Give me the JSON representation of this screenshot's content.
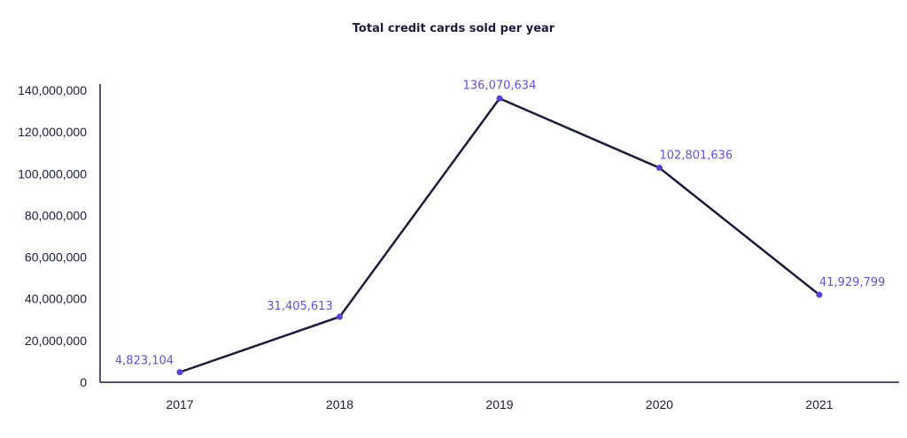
{
  "chart_data": {
    "type": "line",
    "title": "Total credit cards sold per year",
    "xlabel": "",
    "ylabel": "",
    "categories": [
      "2017",
      "2018",
      "2019",
      "2020",
      "2021"
    ],
    "series": [
      {
        "values": [
          4823104,
          31405613,
          136070634,
          102801636,
          41929799
        ],
        "data_labels": [
          "4,823,104",
          "31,405,613",
          "136,070,634",
          "102,801,636",
          "41,929,799"
        ]
      }
    ],
    "y_ticks": [
      "0",
      "20,000,000",
      "40,000,000",
      "60,000,000",
      "80,000,000",
      "100,000,000",
      "120,000,000",
      "140,000,000"
    ],
    "ylim": [
      0,
      140000000
    ],
    "grid": false,
    "legend": "none",
    "colors": {
      "line": "#1c1d3b",
      "marker": "#5b3fd1",
      "label": "#6a4fd6",
      "axis": "#1c1d3b",
      "text": "#1c1d3b"
    }
  }
}
